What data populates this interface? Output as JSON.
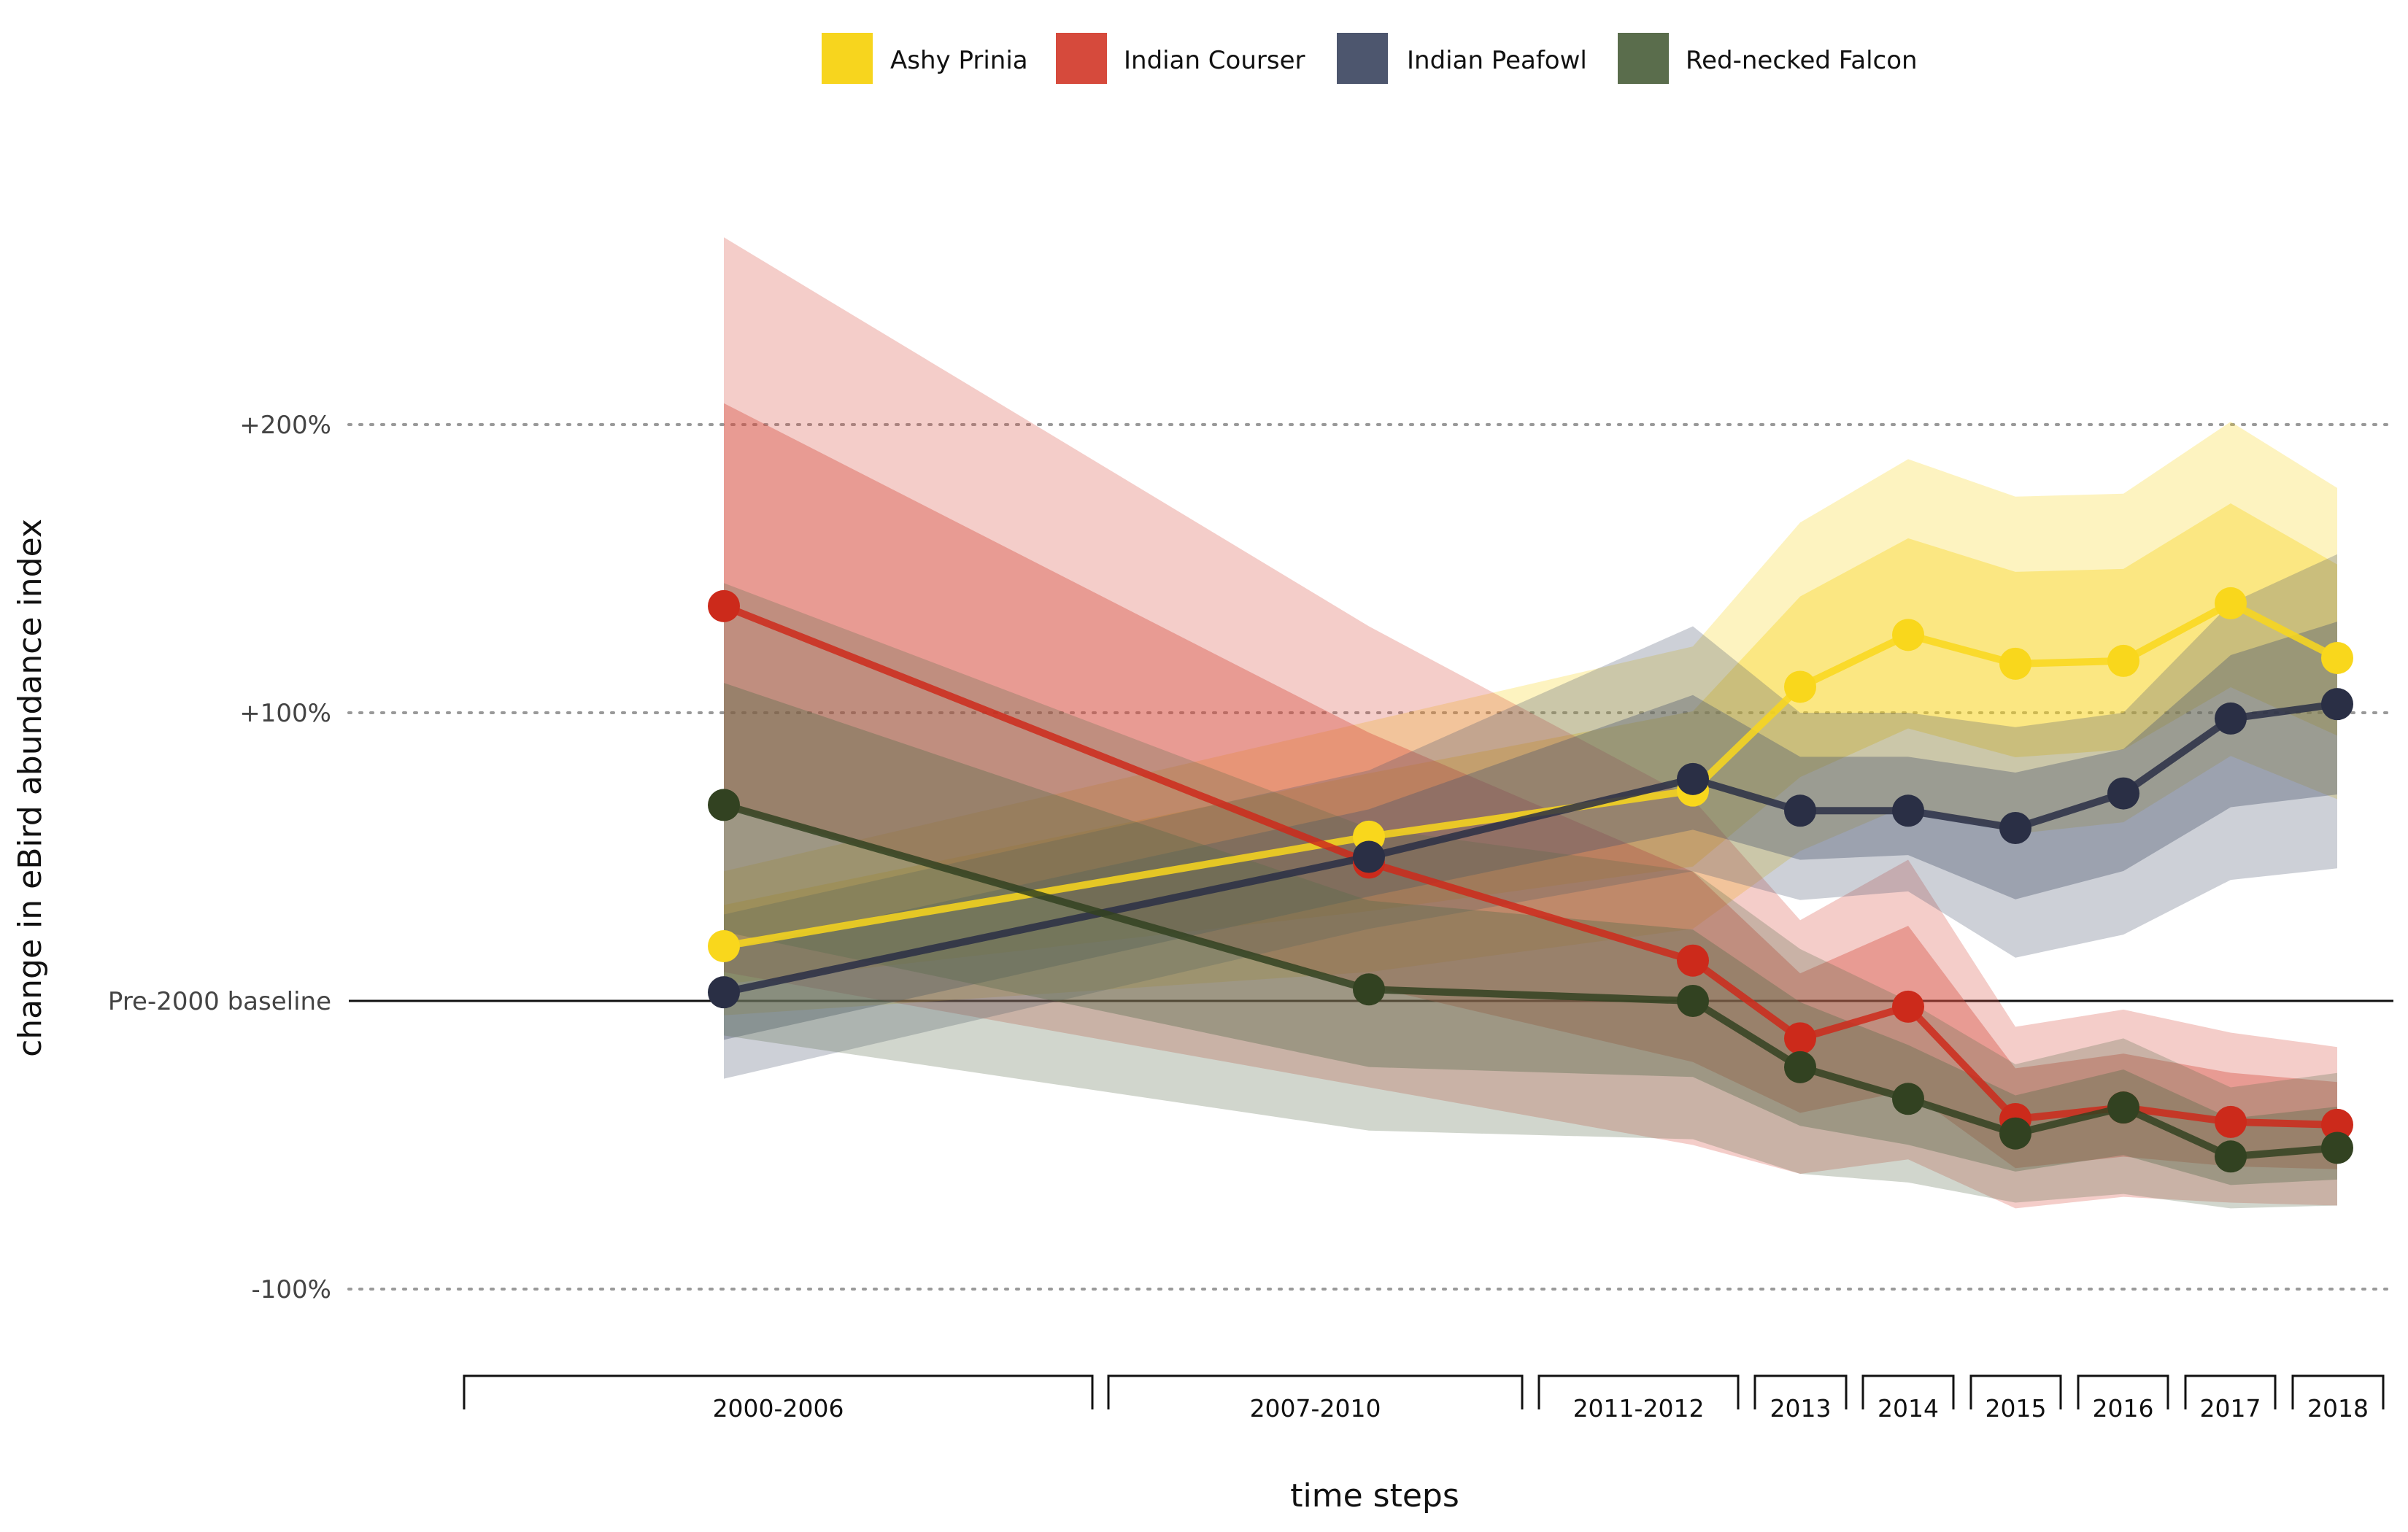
{
  "chart_data": {
    "type": "line",
    "title": "",
    "xlabel": "time steps",
    "ylabel": "change in eBird abundance index",
    "y_ticks": [
      {
        "value": 200,
        "label": "+200%"
      },
      {
        "value": 100,
        "label": "+100%"
      },
      {
        "value": 0,
        "label": "Pre-2000 baseline"
      },
      {
        "value": -100,
        "label": "-100%"
      }
    ],
    "ylim": [
      -120,
      270
    ],
    "grid": "horizontal dotted at tick values",
    "legend_position": "top-center",
    "categories": [
      "2000-2006",
      "2007-2010",
      "2011-2012",
      "2013",
      "2014",
      "2015",
      "2016",
      "2017",
      "2018"
    ],
    "series": [
      {
        "name": "Ashy Prinia",
        "color": "#F9D71C",
        "band_color": "#F7D51E",
        "values": [
          19,
          57,
          73,
          109,
          127,
          117,
          118,
          138,
          119
        ],
        "lower": [
          -5,
          10,
          25,
          52,
          68,
          58,
          62,
          85,
          70
        ],
        "upper": [
          45,
          97,
          123,
          166,
          188,
          175,
          176,
          201,
          178
        ]
      },
      {
        "name": "Indian Courser",
        "color": "#CC2A1B",
        "band_color": "#D64A3C",
        "values": [
          137,
          48,
          14,
          -13,
          -2,
          -41,
          -37,
          -42,
          -43
        ],
        "lower": [
          10,
          -30,
          -50,
          -60,
          -55,
          -72,
          -68,
          -70,
          -71
        ],
        "upper": [
          265,
          130,
          70,
          28,
          49,
          -9,
          -3,
          -11,
          -16
        ]
      },
      {
        "name": "Indian Peafowl",
        "color": "#2A2F45",
        "band_color": "#4D566E",
        "values": [
          3,
          50,
          77,
          66,
          66,
          60,
          72,
          98,
          103
        ],
        "lower": [
          -27,
          25,
          45,
          35,
          38,
          15,
          23,
          42,
          46
        ],
        "upper": [
          30,
          80,
          130,
          100,
          100,
          95,
          100,
          138,
          155
        ]
      },
      {
        "name": "Red-necked Falcon",
        "color": "#324221",
        "band_color": "#5A6D4C",
        "values": [
          68,
          4,
          0,
          -23,
          -34,
          -46,
          -37,
          -54,
          -51
        ],
        "lower": [
          -12,
          -45,
          -48,
          -60,
          -63,
          -70,
          -67,
          -72,
          -71
        ],
        "upper": [
          145,
          60,
          45,
          18,
          0,
          -22,
          -13,
          -30,
          -25
        ]
      }
    ]
  }
}
